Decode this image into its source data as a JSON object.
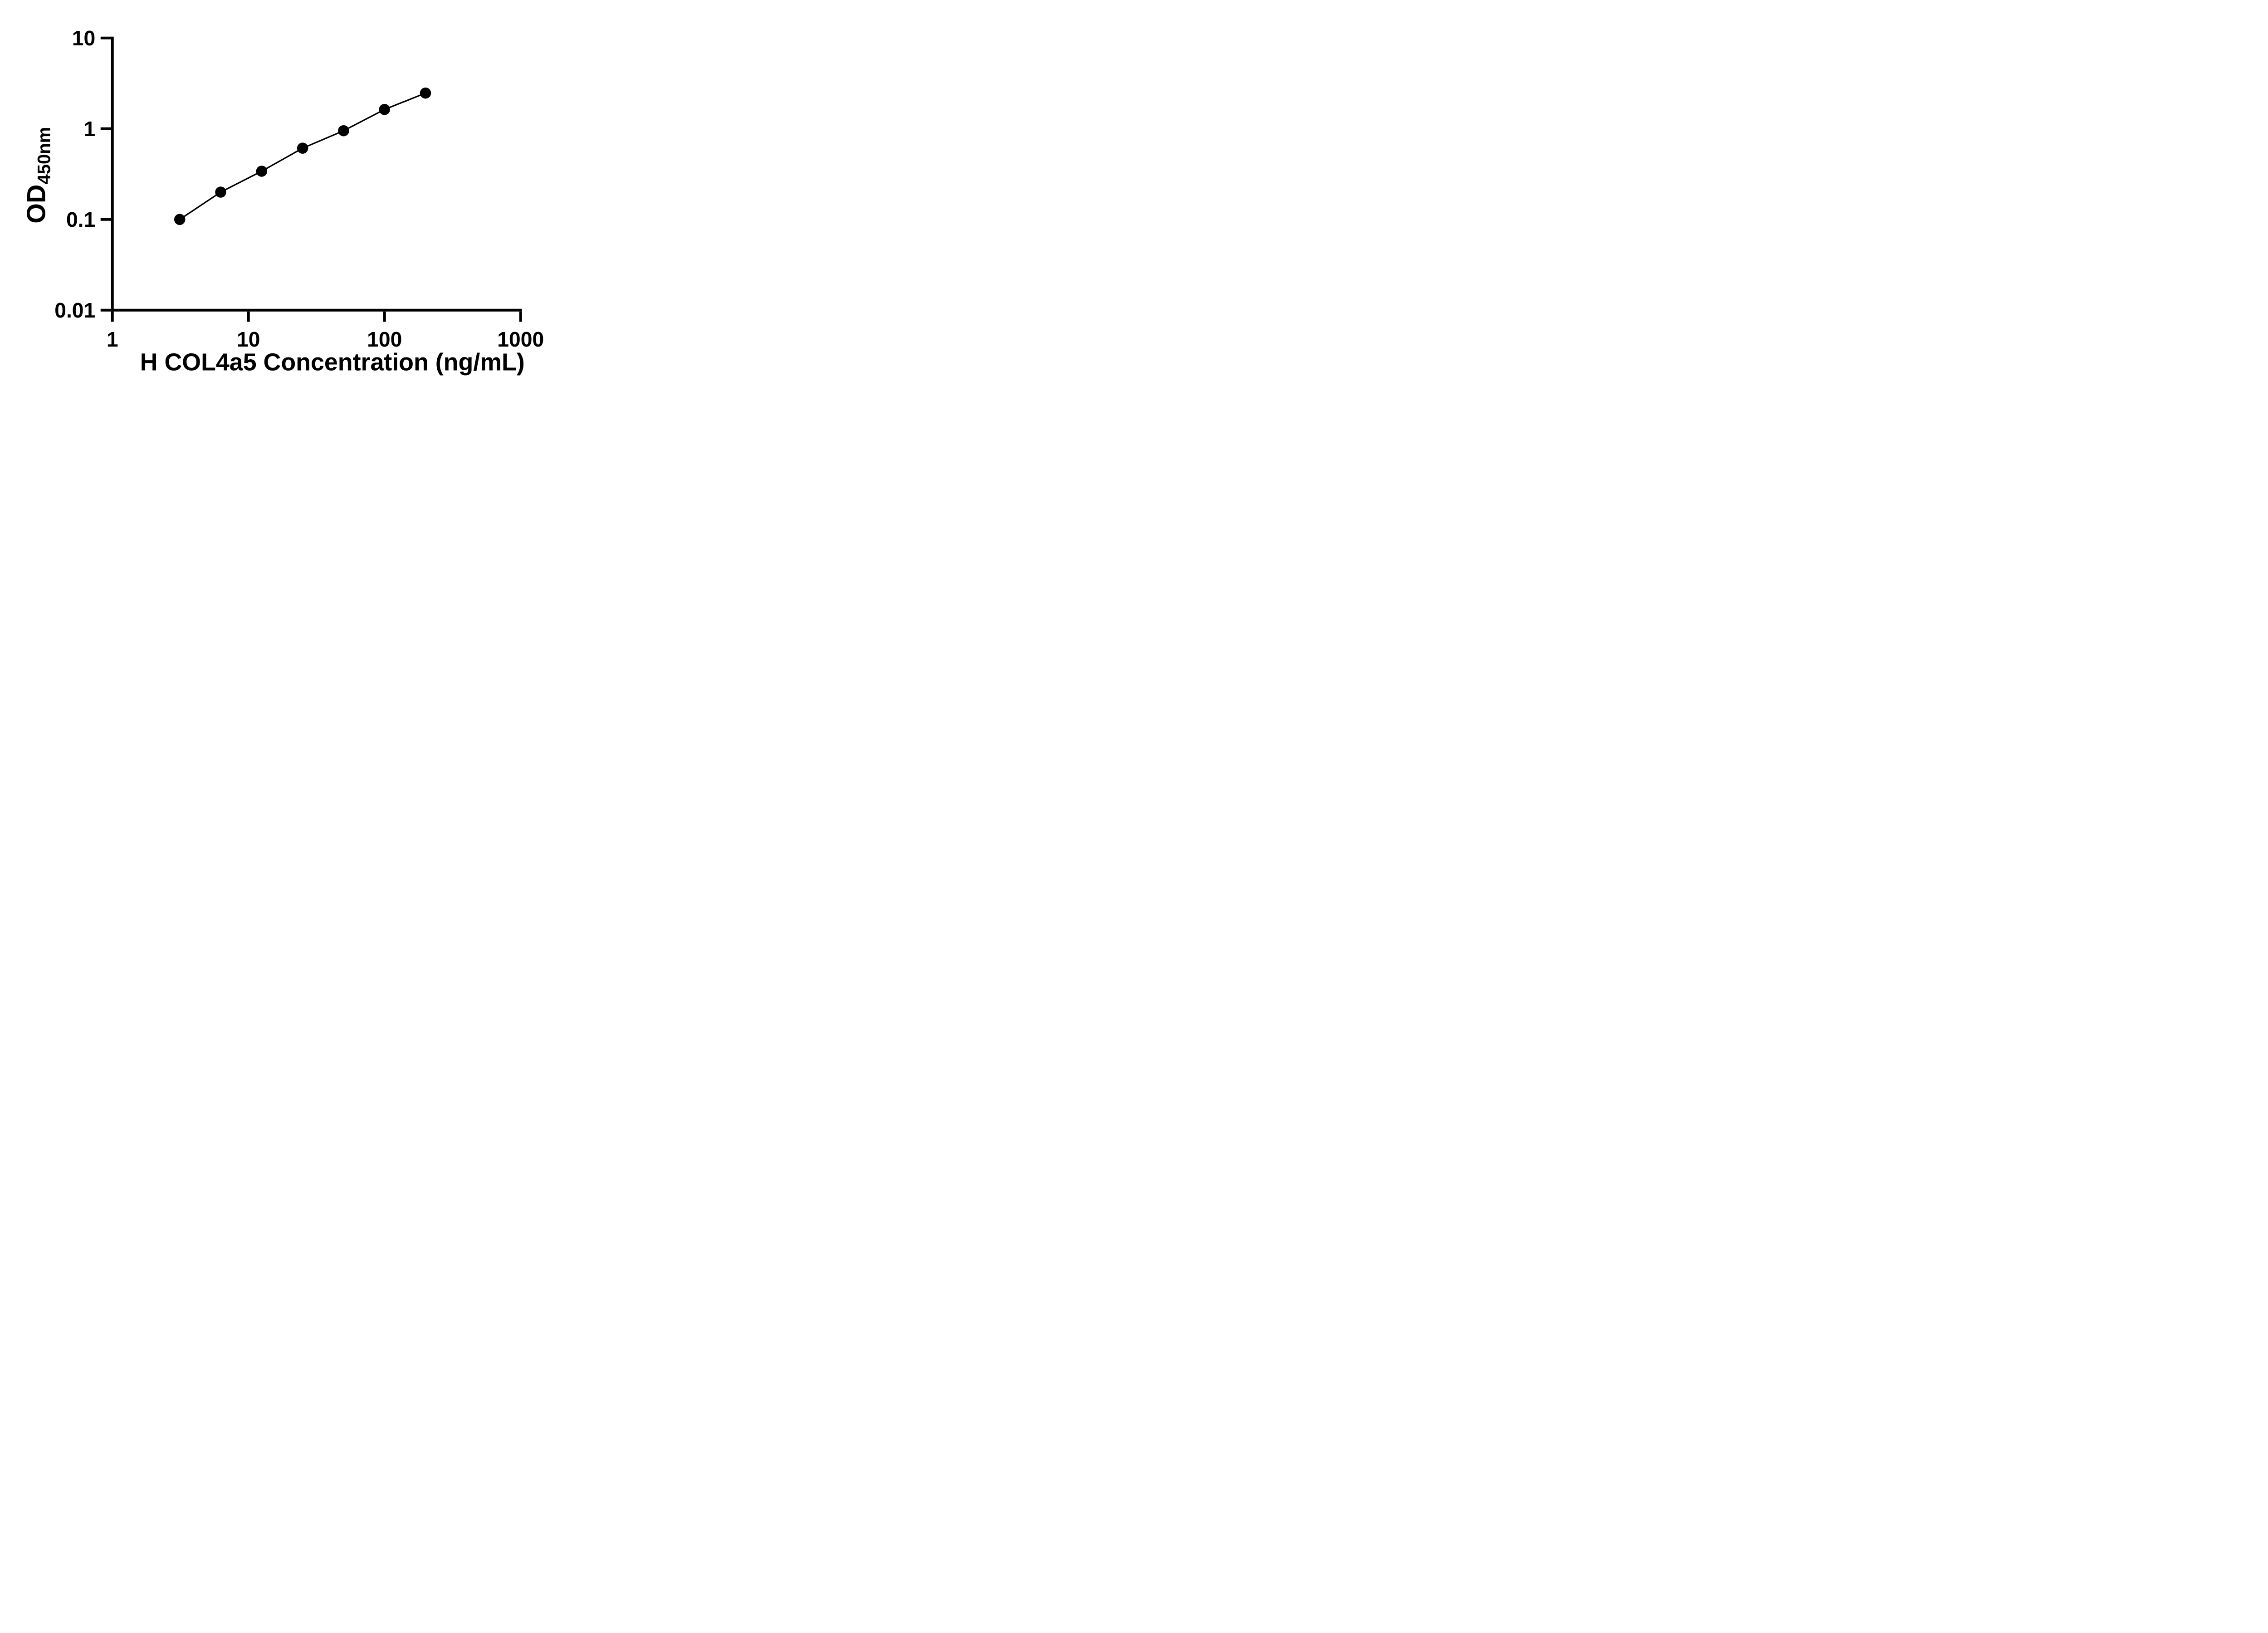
{
  "figure": {
    "background_color": "#ffffff",
    "ink_color": "#000000"
  },
  "chart_data": {
    "type": "line",
    "title": "",
    "xlabel": "H COL4a5 Concentration (ng/mL)",
    "ylabel": "OD450nm",
    "ylabel_base": "OD",
    "ylabel_subscript": "450nm",
    "x_scale": "log10",
    "y_scale": "log10",
    "xlim": [
      1,
      1000
    ],
    "ylim": [
      0.01,
      10
    ],
    "x_ticks": [
      1,
      10,
      100,
      1000
    ],
    "x_tick_labels": [
      "1",
      "10",
      "100",
      "1000"
    ],
    "y_ticks": [
      10,
      1,
      0.1,
      0.01
    ],
    "y_tick_labels": [
      "10",
      "1",
      "0.1",
      "0.01"
    ],
    "grid": false,
    "legend": false,
    "x": [
      3.125,
      6.25,
      12.5,
      25,
      50,
      100,
      200
    ],
    "y": [
      0.1,
      0.2,
      0.34,
      0.61,
      0.95,
      1.63,
      2.47
    ],
    "marker": {
      "shape": "filled-circle",
      "color": "#000000"
    },
    "line": {
      "color": "#000000",
      "style": "solid"
    }
  }
}
